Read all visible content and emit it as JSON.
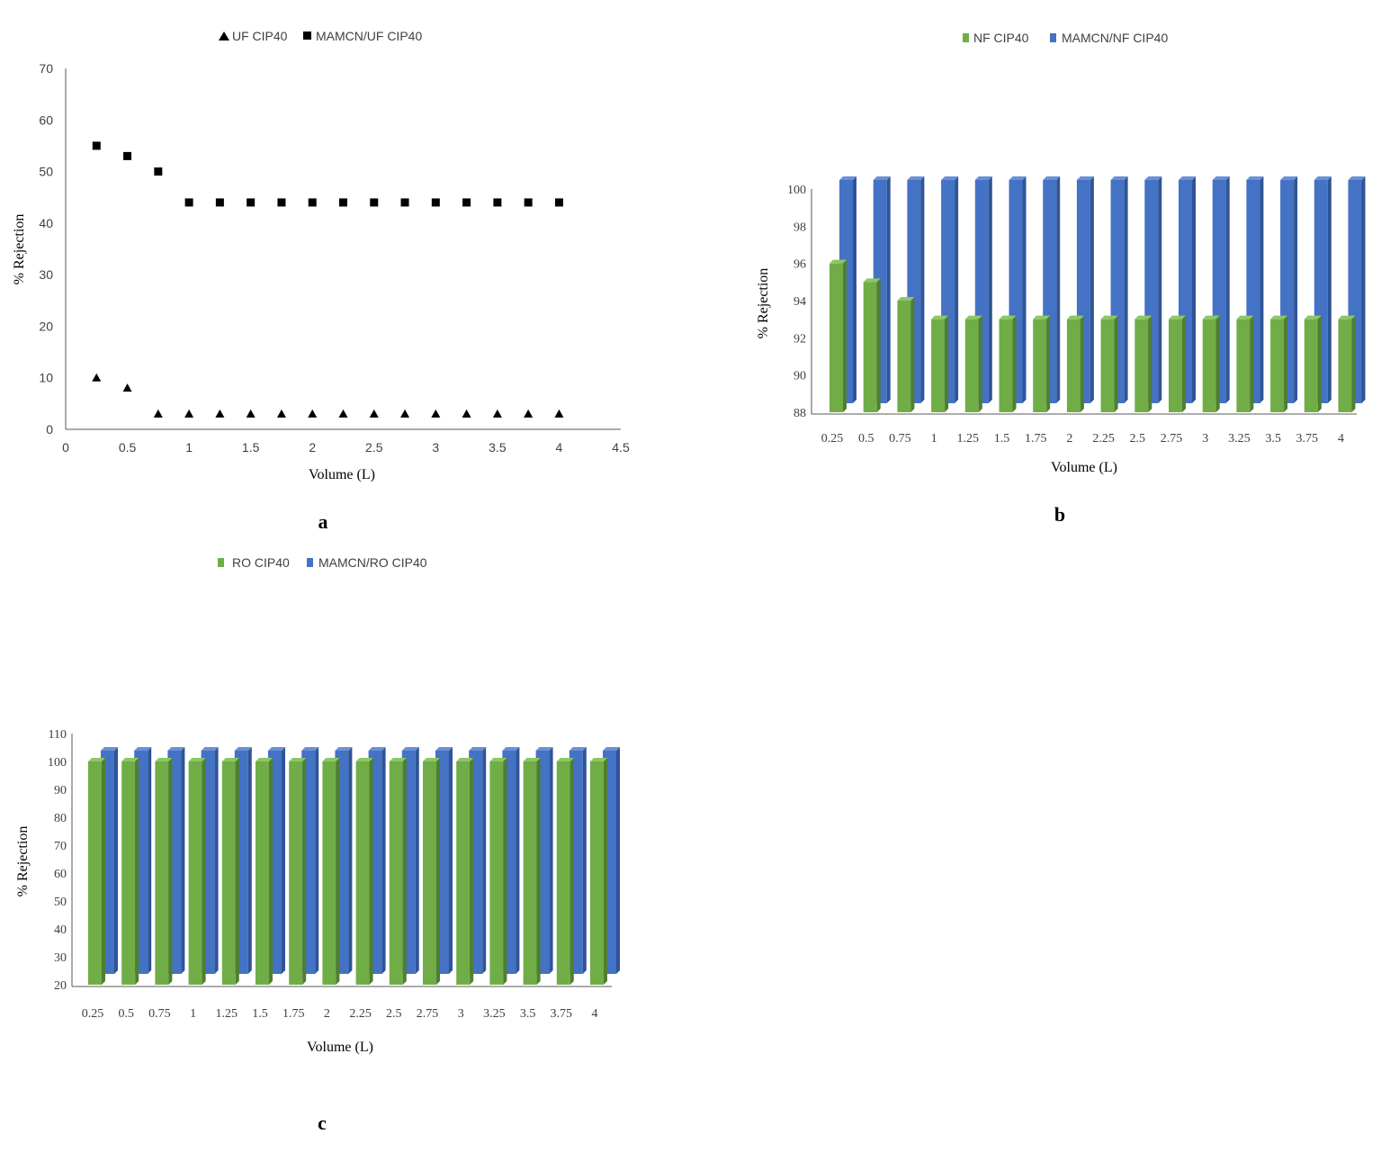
{
  "colors": {
    "axis": "#595959",
    "text": "#404040",
    "marker": "#000000",
    "green": "#70ad47",
    "green_side": "#507e31",
    "green_top": "#8cc763",
    "blue": "#4472c4",
    "blue_side": "#2f5597",
    "blue_top": "#6a90d6"
  },
  "chart_data": [
    {
      "panel": "a",
      "type": "scatter",
      "xlabel": "Volume (L)",
      "ylabel": "% Rejection",
      "xlim": [
        0,
        4.5
      ],
      "ylim": [
        0,
        70
      ],
      "xticks": [
        "0",
        "0.5",
        "1",
        "1.5",
        "2",
        "2.5",
        "3",
        "3.5",
        "4",
        "4.5"
      ],
      "yticks": [
        "0",
        "10",
        "20",
        "30",
        "40",
        "50",
        "60",
        "70"
      ],
      "legend": [
        "UF CIP40",
        "MAMCN/UF CIP40"
      ],
      "series": [
        {
          "name": "UF CIP40",
          "marker": "triangle",
          "x": [
            0.25,
            0.5,
            0.75,
            1,
            1.25,
            1.5,
            1.75,
            2,
            2.25,
            2.5,
            2.75,
            3,
            3.25,
            3.5,
            3.75,
            4
          ],
          "y": [
            10,
            8,
            3,
            3,
            3,
            3,
            3,
            3,
            3,
            3,
            3,
            3,
            3,
            3,
            3,
            3
          ]
        },
        {
          "name": "MAMCN/UF CIP40",
          "marker": "square",
          "x": [
            0.25,
            0.5,
            0.75,
            1,
            1.25,
            1.5,
            1.75,
            2,
            2.25,
            2.5,
            2.75,
            3,
            3.25,
            3.5,
            3.75,
            4
          ],
          "y": [
            55,
            53,
            50,
            44,
            44,
            44,
            44,
            44,
            44,
            44,
            44,
            44,
            44,
            44,
            44,
            44
          ]
        }
      ]
    },
    {
      "panel": "b",
      "type": "bar",
      "xlabel": "Volume (L)",
      "ylabel": "% Rejection",
      "ylim": [
        88,
        100
      ],
      "yticks": [
        "88",
        "90",
        "92",
        "94",
        "96",
        "98",
        "100"
      ],
      "categories": [
        "0.25",
        "0.5",
        "0.75",
        "1",
        "1.25",
        "1.5",
        "1.75",
        "2",
        "2.25",
        "2.5",
        "2.75",
        "3",
        "3.25",
        "3.5",
        "3.75",
        "4"
      ],
      "legend": [
        "NF CIP40",
        "MAMCN/NF CIP40"
      ],
      "series": [
        {
          "name": "NF CIP40",
          "values": [
            96,
            95,
            94,
            93,
            93,
            93,
            93,
            93,
            93,
            93,
            93,
            93,
            93,
            93,
            93,
            93
          ]
        },
        {
          "name": "MAMCN/NF CIP40",
          "values": [
            100,
            100,
            100,
            100,
            100,
            100,
            100,
            100,
            100,
            100,
            100,
            100,
            100,
            100,
            100,
            100
          ]
        }
      ]
    },
    {
      "panel": "c",
      "type": "bar",
      "xlabel": "Volume (L)",
      "ylabel": "% Rejection",
      "ylim": [
        20,
        110
      ],
      "yticks": [
        "20",
        "30",
        "40",
        "50",
        "60",
        "70",
        "80",
        "90",
        "100",
        "110"
      ],
      "categories": [
        "0.25",
        "0.5",
        "0.75",
        "1",
        "1.25",
        "1.5",
        "1.75",
        "2",
        "2.25",
        "2.5",
        "2.75",
        "3",
        "3.25",
        "3.5",
        "3.75",
        "4"
      ],
      "legend": [
        "RO CIP40",
        "MAMCN/RO CIP40"
      ],
      "series": [
        {
          "name": "RO CIP40",
          "values": [
            100,
            100,
            100,
            100,
            100,
            100,
            100,
            100,
            100,
            100,
            100,
            100,
            100,
            100,
            100,
            100
          ]
        },
        {
          "name": "MAMCN/RO CIP40",
          "values": [
            100,
            100,
            100,
            100,
            100,
            100,
            100,
            100,
            100,
            100,
            100,
            100,
            100,
            100,
            100,
            100
          ]
        }
      ]
    }
  ]
}
